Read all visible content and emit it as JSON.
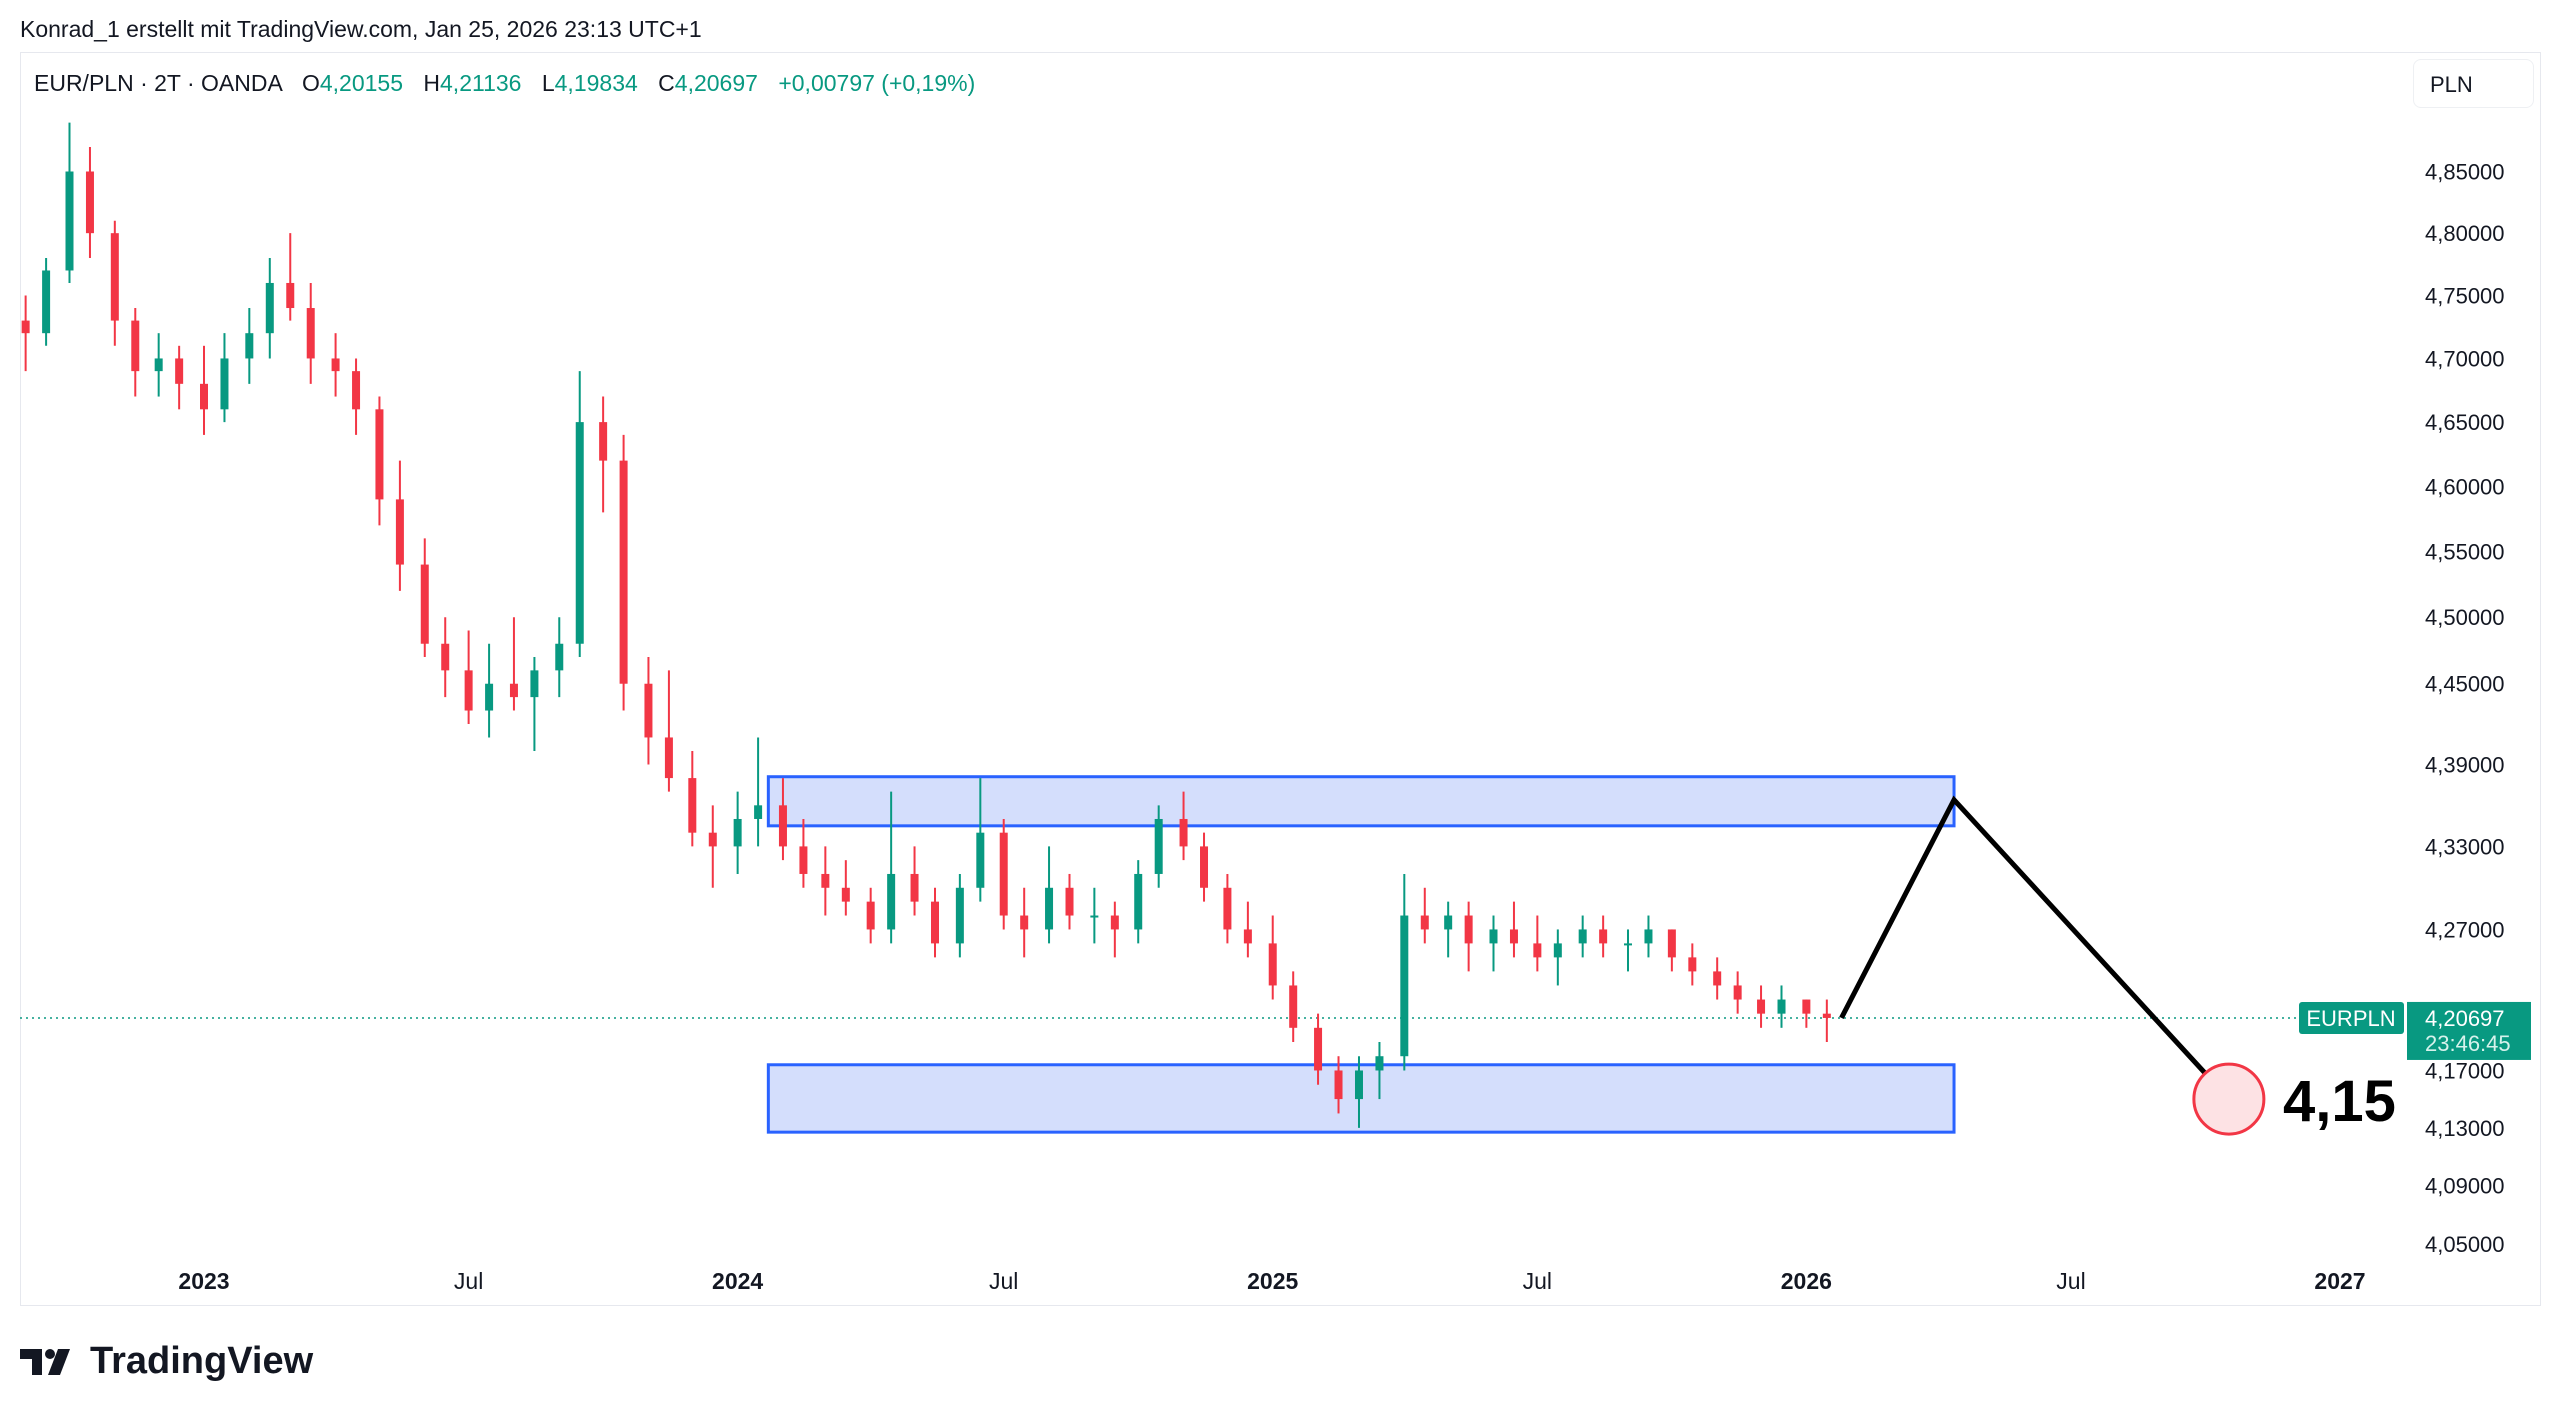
{
  "caption": "Konrad_1 erstellt mit TradingView.com, Jan 25, 2026 23:13 UTC+1",
  "legend": {
    "symbol": "EUR/PLN · 2T · OANDA",
    "o_label": "O",
    "o": "4,20155",
    "h_label": "H",
    "h": "4,21136",
    "l_label": "L",
    "l": "4,19834",
    "c_label": "C",
    "c": "4,20697",
    "change": "+0,00797 (+0,19%)"
  },
  "currency_button": "PLN",
  "price_label": {
    "symbol": "EURPLN",
    "price": "4,20697",
    "countdown": "23:46:45"
  },
  "annotation_text": "4,15",
  "logo_text": "TradingView",
  "colors": {
    "up": "#089981",
    "down": "#f23645",
    "zone_fill": "#d4defc",
    "zone_border": "#2962ff",
    "projection": "#000000",
    "target_circle": "#f23645"
  },
  "chart_data": {
    "type": "candlestick",
    "scale": "log",
    "ylim": [
      4.03,
      4.9
    ],
    "y_ticks": [
      "4,85000",
      "4,80000",
      "4,75000",
      "4,70000",
      "4,65000",
      "4,60000",
      "4,55000",
      "4,50000",
      "4,45000",
      "4,39000",
      "4,33000",
      "4,27000",
      "4,17000",
      "4,13000",
      "4,09000",
      "4,05000"
    ],
    "y_tick_values": [
      4.85,
      4.8,
      4.75,
      4.7,
      4.65,
      4.6,
      4.55,
      4.5,
      4.45,
      4.39,
      4.33,
      4.27,
      4.17,
      4.13,
      4.09,
      4.05
    ],
    "x_ticks": [
      {
        "label": "2023",
        "date": "2023-01-01",
        "bold": true
      },
      {
        "label": "Jul",
        "date": "2023-07-01",
        "bold": false
      },
      {
        "label": "2024",
        "date": "2024-01-01",
        "bold": true
      },
      {
        "label": "Jul",
        "date": "2024-07-01",
        "bold": false
      },
      {
        "label": "2025",
        "date": "2025-01-01",
        "bold": true
      },
      {
        "label": "Jul",
        "date": "2025-07-01",
        "bold": false
      },
      {
        "label": "2026",
        "date": "2026-01-01",
        "bold": true
      },
      {
        "label": "Jul",
        "date": "2026-07-01",
        "bold": false
      },
      {
        "label": "2027",
        "date": "2027-01-01",
        "bold": true
      }
    ],
    "grid": false,
    "last_price": 4.20697,
    "candles_ohlc": [
      [
        "2022-09-01",
        4.73,
        4.75,
        4.69,
        4.72
      ],
      [
        "2022-09-15",
        4.72,
        4.78,
        4.71,
        4.77
      ],
      [
        "2022-10-01",
        4.77,
        4.89,
        4.76,
        4.85
      ],
      [
        "2022-10-15",
        4.85,
        4.87,
        4.78,
        4.8
      ],
      [
        "2022-11-01",
        4.8,
        4.81,
        4.71,
        4.73
      ],
      [
        "2022-11-15",
        4.73,
        4.74,
        4.67,
        4.69
      ],
      [
        "2022-12-01",
        4.69,
        4.72,
        4.67,
        4.7
      ],
      [
        "2022-12-15",
        4.7,
        4.71,
        4.66,
        4.68
      ],
      [
        "2023-01-01",
        4.68,
        4.71,
        4.64,
        4.66
      ],
      [
        "2023-01-15",
        4.66,
        4.72,
        4.65,
        4.7
      ],
      [
        "2023-02-01",
        4.7,
        4.74,
        4.68,
        4.72
      ],
      [
        "2023-02-15",
        4.72,
        4.78,
        4.7,
        4.76
      ],
      [
        "2023-03-01",
        4.76,
        4.8,
        4.73,
        4.74
      ],
      [
        "2023-03-15",
        4.74,
        4.76,
        4.68,
        4.7
      ],
      [
        "2023-04-01",
        4.7,
        4.72,
        4.67,
        4.69
      ],
      [
        "2023-04-15",
        4.69,
        4.7,
        4.64,
        4.66
      ],
      [
        "2023-05-01",
        4.66,
        4.67,
        4.57,
        4.59
      ],
      [
        "2023-05-15",
        4.59,
        4.62,
        4.52,
        4.54
      ],
      [
        "2023-06-01",
        4.54,
        4.56,
        4.47,
        4.48
      ],
      [
        "2023-06-15",
        4.48,
        4.5,
        4.44,
        4.46
      ],
      [
        "2023-07-01",
        4.46,
        4.49,
        4.42,
        4.43
      ],
      [
        "2023-07-15",
        4.43,
        4.48,
        4.41,
        4.45
      ],
      [
        "2023-08-01",
        4.45,
        4.5,
        4.43,
        4.44
      ],
      [
        "2023-08-15",
        4.44,
        4.47,
        4.4,
        4.46
      ],
      [
        "2023-09-01",
        4.46,
        4.5,
        4.44,
        4.48
      ],
      [
        "2023-09-15",
        4.48,
        4.69,
        4.47,
        4.65
      ],
      [
        "2023-10-01",
        4.65,
        4.67,
        4.58,
        4.62
      ],
      [
        "2023-10-15",
        4.62,
        4.64,
        4.43,
        4.45
      ],
      [
        "2023-11-01",
        4.45,
        4.47,
        4.39,
        4.41
      ],
      [
        "2023-11-15",
        4.41,
        4.46,
        4.37,
        4.38
      ],
      [
        "2023-12-01",
        4.38,
        4.4,
        4.33,
        4.34
      ],
      [
        "2023-12-15",
        4.34,
        4.36,
        4.3,
        4.33
      ],
      [
        "2024-01-01",
        4.33,
        4.37,
        4.31,
        4.35
      ],
      [
        "2024-01-15",
        4.35,
        4.41,
        4.33,
        4.36
      ],
      [
        "2024-02-01",
        4.36,
        4.38,
        4.32,
        4.33
      ],
      [
        "2024-02-15",
        4.33,
        4.35,
        4.3,
        4.31
      ],
      [
        "2024-03-01",
        4.31,
        4.33,
        4.28,
        4.3
      ],
      [
        "2024-03-15",
        4.3,
        4.32,
        4.28,
        4.29
      ],
      [
        "2024-04-01",
        4.29,
        4.3,
        4.26,
        4.27
      ],
      [
        "2024-04-15",
        4.27,
        4.37,
        4.26,
        4.31
      ],
      [
        "2024-05-01",
        4.31,
        4.33,
        4.28,
        4.29
      ],
      [
        "2024-05-15",
        4.29,
        4.3,
        4.25,
        4.26
      ],
      [
        "2024-06-01",
        4.26,
        4.31,
        4.25,
        4.3
      ],
      [
        "2024-06-15",
        4.3,
        4.38,
        4.29,
        4.34
      ],
      [
        "2024-07-01",
        4.34,
        4.35,
        4.27,
        4.28
      ],
      [
        "2024-07-15",
        4.28,
        4.3,
        4.25,
        4.27
      ],
      [
        "2024-08-01",
        4.27,
        4.33,
        4.26,
        4.3
      ],
      [
        "2024-08-15",
        4.3,
        4.31,
        4.27,
        4.28
      ],
      [
        "2024-09-01",
        4.28,
        4.3,
        4.26,
        4.28
      ],
      [
        "2024-09-15",
        4.28,
        4.29,
        4.25,
        4.27
      ],
      [
        "2024-10-01",
        4.27,
        4.32,
        4.26,
        4.31
      ],
      [
        "2024-10-15",
        4.31,
        4.36,
        4.3,
        4.35
      ],
      [
        "2024-11-01",
        4.35,
        4.37,
        4.32,
        4.33
      ],
      [
        "2024-11-15",
        4.33,
        4.34,
        4.29,
        4.3
      ],
      [
        "2024-12-01",
        4.3,
        4.31,
        4.26,
        4.27
      ],
      [
        "2024-12-15",
        4.27,
        4.29,
        4.25,
        4.26
      ],
      [
        "2025-01-01",
        4.26,
        4.28,
        4.22,
        4.23
      ],
      [
        "2025-01-15",
        4.23,
        4.24,
        4.19,
        4.2
      ],
      [
        "2025-02-01",
        4.2,
        4.21,
        4.16,
        4.17
      ],
      [
        "2025-02-15",
        4.17,
        4.18,
        4.14,
        4.15
      ],
      [
        "2025-03-01",
        4.15,
        4.18,
        4.13,
        4.17
      ],
      [
        "2025-03-15",
        4.17,
        4.19,
        4.15,
        4.18
      ],
      [
        "2025-04-01",
        4.18,
        4.31,
        4.17,
        4.28
      ],
      [
        "2025-04-15",
        4.28,
        4.3,
        4.26,
        4.27
      ],
      [
        "2025-05-01",
        4.27,
        4.29,
        4.25,
        4.28
      ],
      [
        "2025-05-15",
        4.28,
        4.29,
        4.24,
        4.26
      ],
      [
        "2025-06-01",
        4.26,
        4.28,
        4.24,
        4.27
      ],
      [
        "2025-06-15",
        4.27,
        4.29,
        4.25,
        4.26
      ],
      [
        "2025-07-01",
        4.26,
        4.28,
        4.24,
        4.25
      ],
      [
        "2025-07-15",
        4.25,
        4.27,
        4.23,
        4.26
      ],
      [
        "2025-08-01",
        4.26,
        4.28,
        4.25,
        4.27
      ],
      [
        "2025-08-15",
        4.27,
        4.28,
        4.25,
        4.26
      ],
      [
        "2025-09-01",
        4.26,
        4.27,
        4.24,
        4.26
      ],
      [
        "2025-09-15",
        4.26,
        4.28,
        4.25,
        4.27
      ],
      [
        "2025-10-01",
        4.27,
        4.27,
        4.24,
        4.25
      ],
      [
        "2025-10-15",
        4.25,
        4.26,
        4.23,
        4.24
      ],
      [
        "2025-11-01",
        4.24,
        4.25,
        4.22,
        4.23
      ],
      [
        "2025-11-15",
        4.23,
        4.24,
        4.21,
        4.22
      ],
      [
        "2025-12-01",
        4.22,
        4.23,
        4.2,
        4.21
      ],
      [
        "2025-12-15",
        4.21,
        4.23,
        4.2,
        4.22
      ],
      [
        "2026-01-01",
        4.22,
        4.22,
        4.2,
        4.21
      ],
      [
        "2026-01-15",
        4.21,
        4.22,
        4.19,
        4.20697
      ]
    ],
    "zones": [
      {
        "from": "2024-01-22",
        "to": "2026-04-12",
        "top": 4.381,
        "bottom": 4.345
      },
      {
        "from": "2024-01-22",
        "to": "2026-04-12",
        "top": 4.174,
        "bottom": 4.127
      }
    ],
    "projection_path": [
      [
        "2026-01-25",
        4.207
      ],
      [
        "2026-04-12",
        4.364
      ],
      [
        "2026-10-17",
        4.15
      ]
    ],
    "target": {
      "date": "2026-10-17",
      "price": 4.15
    }
  }
}
